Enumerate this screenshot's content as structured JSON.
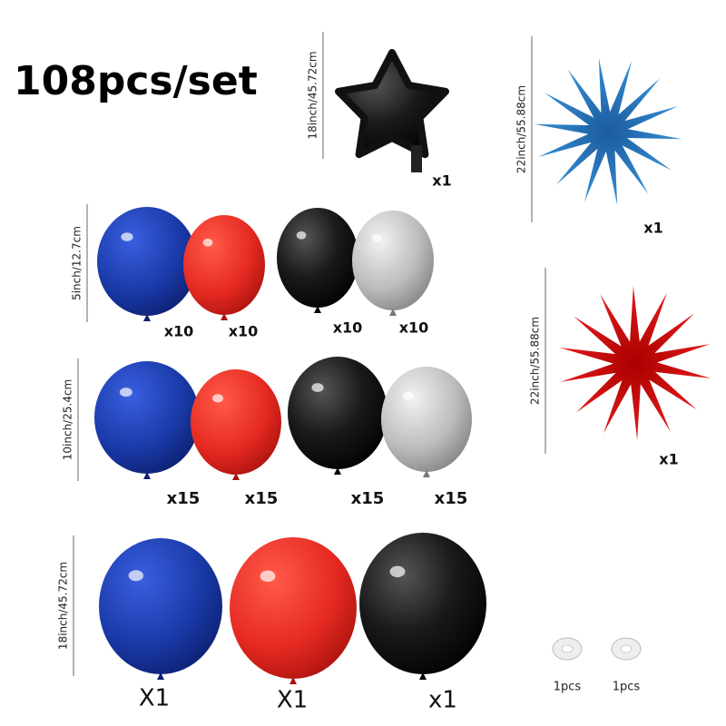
{
  "title": "108pcs/set",
  "foil": [
    {
      "size": "18inch/45.72cm",
      "count": "x1"
    },
    {
      "size": "22inch/55.88cm",
      "count": "x1"
    },
    {
      "size": "22inch/55.88cm",
      "count": "x1"
    }
  ],
  "rows": [
    {
      "size": "5inch/12.7cm",
      "counts": [
        "x10",
        "x10",
        "x10",
        "x10"
      ]
    },
    {
      "size": "10inch/25.4cm",
      "counts": [
        "x15",
        "x15",
        "x15",
        "x15"
      ]
    },
    {
      "size": "18inch/45.72cm",
      "counts": [
        "X1",
        "X1",
        "x1"
      ]
    }
  ],
  "accessories": [
    "1pcs",
    "1pcs"
  ]
}
